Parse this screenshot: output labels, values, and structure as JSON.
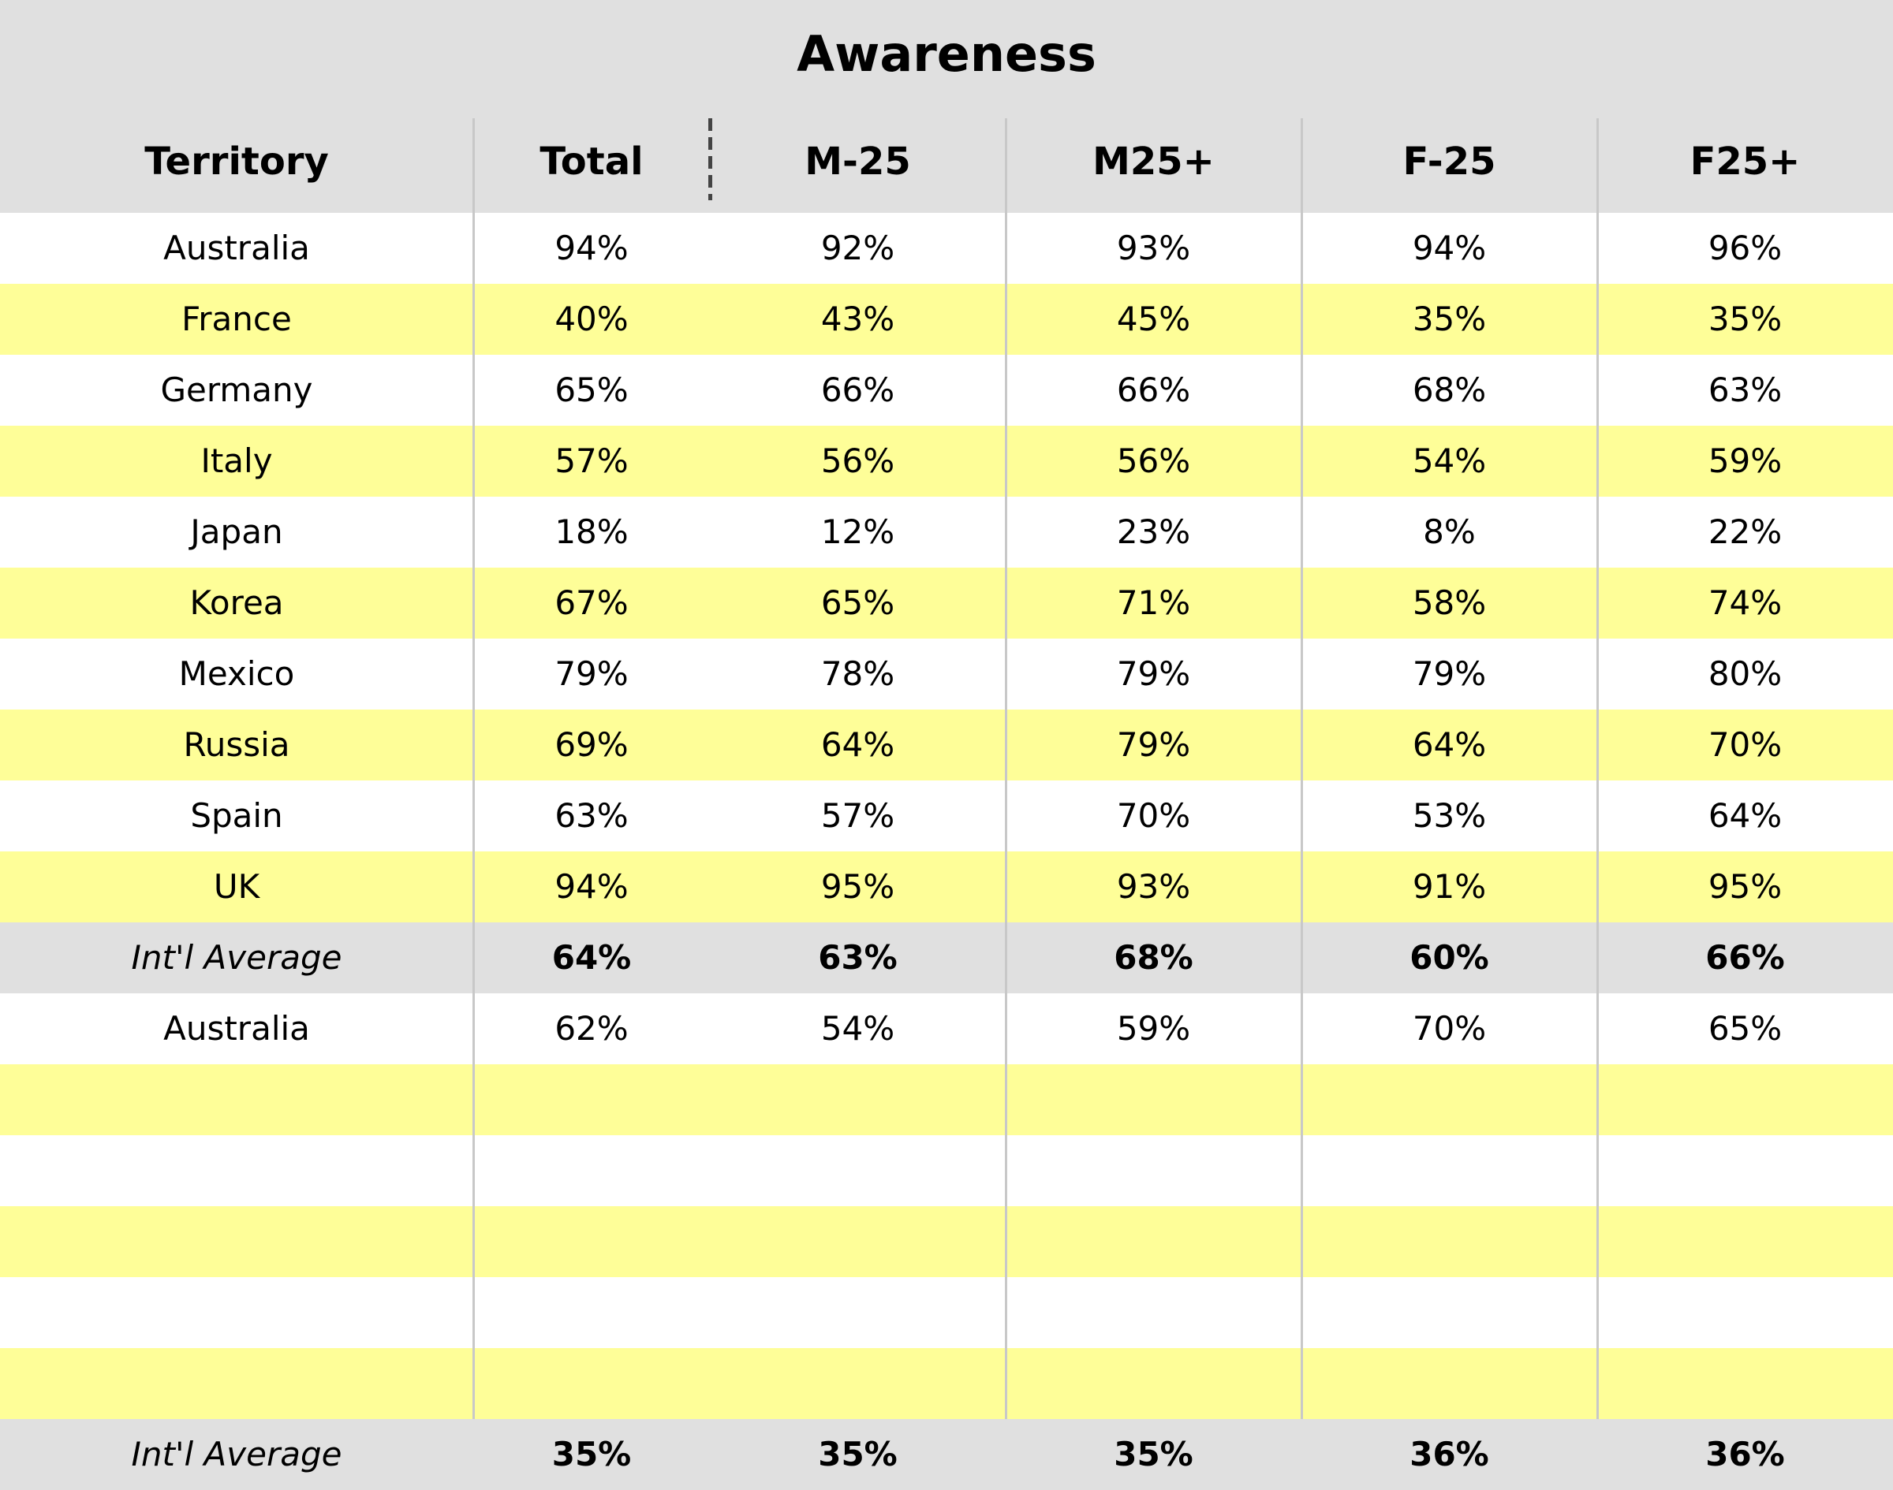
{
  "chart_data": {
    "type": "table",
    "title": "Awareness",
    "columns": [
      "Territory",
      "Total",
      "M-25",
      "M25+",
      "F-25",
      "F25+"
    ],
    "rows": [
      {
        "kind": "data",
        "cells": [
          "Australia",
          "94%",
          "92%",
          "93%",
          "94%",
          "96%"
        ]
      },
      {
        "kind": "data",
        "cells": [
          "France",
          "40%",
          "43%",
          "45%",
          "35%",
          "35%"
        ]
      },
      {
        "kind": "data",
        "cells": [
          "Germany",
          "65%",
          "66%",
          "66%",
          "68%",
          "63%"
        ]
      },
      {
        "kind": "data",
        "cells": [
          "Italy",
          "57%",
          "56%",
          "56%",
          "54%",
          "59%"
        ]
      },
      {
        "kind": "data",
        "cells": [
          "Japan",
          "18%",
          "12%",
          "23%",
          "8%",
          "22%"
        ]
      },
      {
        "kind": "data",
        "cells": [
          "Korea",
          "67%",
          "65%",
          "71%",
          "58%",
          "74%"
        ]
      },
      {
        "kind": "data",
        "cells": [
          "Mexico",
          "79%",
          "78%",
          "79%",
          "79%",
          "80%"
        ]
      },
      {
        "kind": "data",
        "cells": [
          "Russia",
          "69%",
          "64%",
          "79%",
          "64%",
          "70%"
        ]
      },
      {
        "kind": "data",
        "cells": [
          "Spain",
          "63%",
          "57%",
          "70%",
          "53%",
          "64%"
        ]
      },
      {
        "kind": "data",
        "cells": [
          "UK",
          "94%",
          "95%",
          "93%",
          "91%",
          "95%"
        ]
      },
      {
        "kind": "avg",
        "cells": [
          "Int'l Average",
          "64%",
          "63%",
          "68%",
          "60%",
          "66%"
        ]
      },
      {
        "kind": "data",
        "cells": [
          "Australia",
          "62%",
          "54%",
          "59%",
          "70%",
          "65%"
        ]
      },
      {
        "kind": "blank",
        "cells": [
          "",
          "",
          "",
          "",
          "",
          ""
        ]
      },
      {
        "kind": "blank",
        "cells": [
          "",
          "",
          "",
          "",
          "",
          ""
        ]
      },
      {
        "kind": "blank",
        "cells": [
          "",
          "",
          "",
          "",
          "",
          ""
        ]
      },
      {
        "kind": "blank",
        "cells": [
          "",
          "",
          "",
          "",
          "",
          ""
        ]
      },
      {
        "kind": "blank",
        "cells": [
          "",
          "",
          "",
          "",
          "",
          ""
        ]
      },
      {
        "kind": "avg",
        "cells": [
          "Int'l Average",
          "35%",
          "35%",
          "35%",
          "36%",
          "36%"
        ]
      }
    ],
    "colors": {
      "header_background": "#e0e0e0",
      "row_alternate": "#fefe98",
      "row_base": "#ffffff",
      "column_divider": "#c8c8c8"
    }
  }
}
